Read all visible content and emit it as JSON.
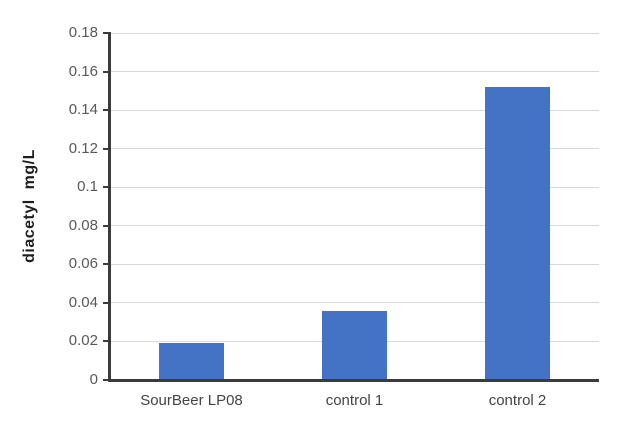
{
  "chart_data": {
    "type": "bar",
    "title": "",
    "xlabel": "",
    "ylabel": "diacetyl  mg/L",
    "categories": [
      "SourBeer LP08",
      "control 1",
      "control 2"
    ],
    "values": [
      0.019,
      0.036,
      0.152
    ],
    "ylim": [
      0,
      0.18
    ],
    "ytick_step": 0.02,
    "ytick_labels": [
      "0",
      "0.02",
      "0.04",
      "0.06",
      "0.08",
      "0.1",
      "0.12",
      "0.14",
      "0.16",
      "0.18"
    ],
    "grid": true,
    "legend": false,
    "legend_position": "none",
    "colors": {
      "bar": "#4472c4",
      "gridline": "#d9d9d9",
      "axis_line": "#3b3b3b",
      "tick_label": "#595959",
      "category_label": "#444444",
      "axis_title": "#1f1f1f",
      "background": "#ffffff"
    }
  }
}
